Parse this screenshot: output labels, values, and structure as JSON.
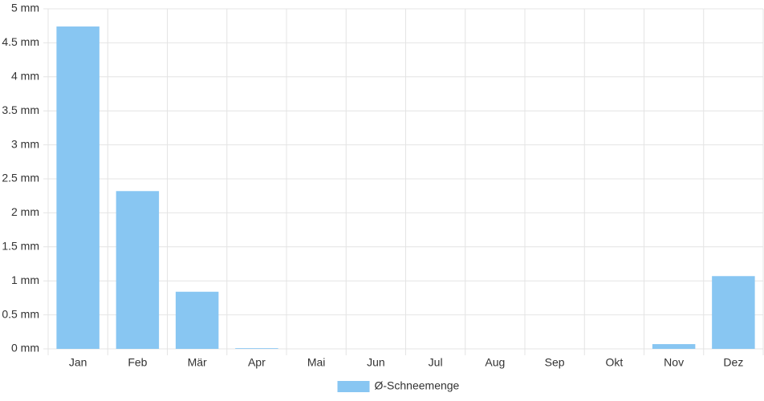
{
  "chart_data": {
    "type": "bar",
    "categories": [
      "Jan",
      "Feb",
      "Mär",
      "Apr",
      "Mai",
      "Jun",
      "Jul",
      "Aug",
      "Sep",
      "Okt",
      "Nov",
      "Dez"
    ],
    "series": [
      {
        "name": "Ø-Schneemenge",
        "color": "#88c6f2",
        "values": [
          4.74,
          2.32,
          0.84,
          0.01,
          0,
          0,
          0,
          0,
          0,
          0,
          0.07,
          1.07
        ]
      }
    ],
    "ylim": [
      0,
      5
    ],
    "yticks": [
      {
        "value": 0,
        "label": "0 mm"
      },
      {
        "value": 0.5,
        "label": "0.5 mm"
      },
      {
        "value": 1,
        "label": "1 mm"
      },
      {
        "value": 1.5,
        "label": "1.5 mm"
      },
      {
        "value": 2,
        "label": "2 mm"
      },
      {
        "value": 2.5,
        "label": "2.5 mm"
      },
      {
        "value": 3,
        "label": "3 mm"
      },
      {
        "value": 3.5,
        "label": "3.5 mm"
      },
      {
        "value": 4,
        "label": "4 mm"
      },
      {
        "value": 4.5,
        "label": "4.5 mm"
      },
      {
        "value": 5,
        "label": "5 mm"
      }
    ],
    "grid": true,
    "legend": "bottom"
  }
}
